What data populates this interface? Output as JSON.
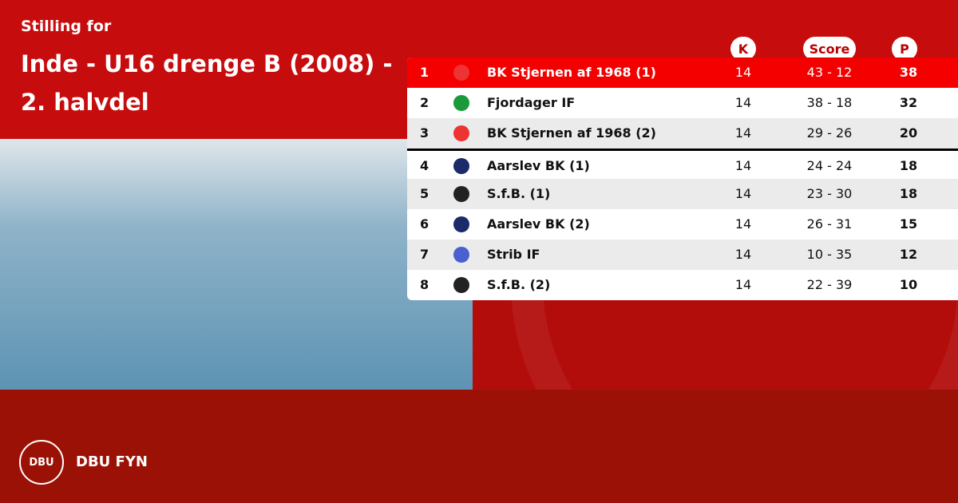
{
  "header": {
    "subtitle": "Stilling for",
    "title": "Inde - U16 drenge B (2008) - 2. halvdel"
  },
  "columns": {
    "k": "K",
    "score": "Score",
    "p": "P"
  },
  "rows": [
    {
      "rank": "1",
      "team": "BK Stjernen af 1968 (1)",
      "k": "14",
      "score": "43 - 12",
      "p": "38",
      "logo": "bk-stjernen-logo"
    },
    {
      "rank": "2",
      "team": "Fjordager IF",
      "k": "14",
      "score": "38 - 18",
      "p": "32",
      "logo": "fjordager-logo"
    },
    {
      "rank": "3",
      "team": "BK Stjernen af 1968 (2)",
      "k": "14",
      "score": "29 - 26",
      "p": "20",
      "logo": "bk-stjernen-logo"
    },
    {
      "rank": "4",
      "team": "Aarslev BK (1)",
      "k": "14",
      "score": "24 - 24",
      "p": "18",
      "logo": "aarslev-logo"
    },
    {
      "rank": "5",
      "team": "S.f.B. (1)",
      "k": "14",
      "score": "23 - 30",
      "p": "18",
      "logo": "sfb-logo"
    },
    {
      "rank": "6",
      "team": "Aarslev BK (2)",
      "k": "14",
      "score": "26 - 31",
      "p": "15",
      "logo": "aarslev-logo"
    },
    {
      "rank": "7",
      "team": "Strib IF",
      "k": "14",
      "score": "10 - 35",
      "p": "12",
      "logo": "strib-logo"
    },
    {
      "rank": "8",
      "team": "S.f.B. (2)",
      "k": "14",
      "score": "22 - 39",
      "p": "10",
      "logo": "sfb-logo"
    }
  ],
  "footer": {
    "brand": "DBU FYN",
    "logo_text": "DBU"
  },
  "colors": {
    "leader": "#f40000",
    "header_bg": "#c70c0e",
    "footer_bg": "#9c1106"
  }
}
